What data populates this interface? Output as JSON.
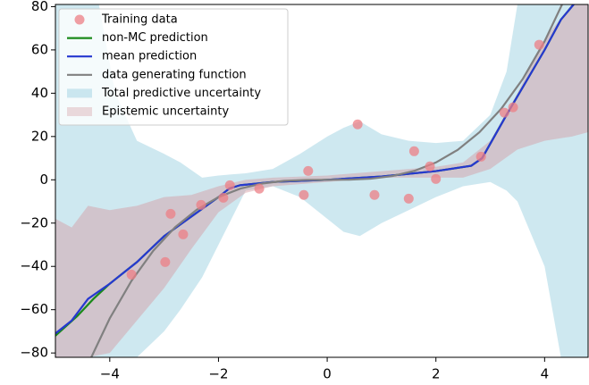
{
  "chart_data": {
    "type": "line",
    "xlim": [
      -5,
      4.8
    ],
    "ylim": [
      -82,
      81
    ],
    "xticks": [
      {
        "value": -4,
        "label": "−4"
      },
      {
        "value": -2,
        "label": "−2"
      },
      0,
      2,
      4
    ],
    "yticks": [
      {
        "value": -80,
        "label": "−80"
      },
      {
        "value": -60,
        "label": "−60"
      },
      {
        "value": -40,
        "label": "−40"
      },
      {
        "value": -20,
        "label": "−20"
      },
      0,
      20,
      40,
      60,
      80
    ],
    "legend": "upper left",
    "series": [
      {
        "name": "Training data",
        "kind": "scatter",
        "color": "#ec7f86",
        "x": [
          -3.6,
          -2.88,
          -2.98,
          -2.65,
          -2.32,
          -1.91,
          -1.79,
          -1.25,
          -0.43,
          -0.35,
          0.56,
          0.87,
          1.5,
          1.6,
          1.89,
          2.0,
          2.83,
          3.26,
          3.42,
          3.9
        ],
        "values": [
          -43.8,
          -15.7,
          -38,
          -25.2,
          -11.6,
          -8.3,
          -2.5,
          -4.1,
          -7,
          4.1,
          25.6,
          -7,
          -8.7,
          13.2,
          6.2,
          0.4,
          10.7,
          31,
          33.5,
          62.4
        ]
      },
      {
        "name": "non-MC prediction",
        "kind": "line",
        "color": "#1a8a1a",
        "x": [
          -5,
          -4.6,
          -4.3,
          -4,
          -3.5,
          -3,
          -2.5,
          -2,
          -1.8,
          -1.6,
          -1,
          0,
          1,
          2,
          2.65,
          2.85,
          3.3,
          4,
          4.3,
          4.6
        ],
        "values": [
          -72,
          -63,
          -55,
          -48,
          -38,
          -26,
          -17,
          -8,
          -4,
          -2.5,
          -1,
          0,
          1.5,
          4,
          6.5,
          10,
          30,
          60,
          74,
          83
        ]
      },
      {
        "name": "mean prediction",
        "kind": "line",
        "color": "#2638d0",
        "x": [
          -5,
          -4.7,
          -4.4,
          -4,
          -3.5,
          -3,
          -2.5,
          -2,
          -1.8,
          -1.6,
          -1,
          0,
          1,
          2,
          2.65,
          2.85,
          3.3,
          4,
          4.3,
          4.6
        ],
        "values": [
          -71,
          -65,
          -55,
          -48,
          -38,
          -26,
          -17,
          -8,
          -4,
          -2.5,
          -1,
          0,
          1.5,
          4,
          6.5,
          10,
          30,
          60,
          74,
          83
        ]
      },
      {
        "name": "data generating function",
        "kind": "line",
        "color": "#808080",
        "x": [
          -4.4,
          -4,
          -3.6,
          -3.2,
          -2.8,
          -2.4,
          -2,
          -1.6,
          -1.2,
          -0.8,
          -0.4,
          0,
          0.4,
          0.8,
          1.2,
          1.6,
          2,
          2.4,
          2.8,
          3.2,
          3.6,
          4,
          4.4
        ],
        "values": [
          -85.18,
          -64,
          -46.66,
          -32.77,
          -21.95,
          -13.82,
          -8,
          -4.1,
          -1.73,
          -0.51,
          -0.06,
          0,
          0.06,
          0.51,
          1.73,
          4.1,
          8,
          13.82,
          21.95,
          32.77,
          46.66,
          64,
          85.18
        ]
      },
      {
        "name": "Total predictive uncertainty",
        "kind": "band",
        "color": "#add8e6",
        "x": [
          -5,
          -4.2,
          -3.9,
          -3.5,
          -3,
          -2.7,
          -2.3,
          -2,
          -1.5,
          -1,
          -0.5,
          0,
          0.3,
          0.6,
          1,
          1.5,
          2,
          2.5,
          3,
          3.3,
          3.5,
          4,
          4.3,
          4.8
        ],
        "upper": [
          81,
          81,
          40,
          18,
          12,
          8,
          1,
          2,
          3,
          5,
          12,
          20,
          24,
          27,
          21,
          18,
          17,
          18,
          30,
          50,
          81,
          81,
          81,
          81
        ],
        "lower": [
          -82,
          -82,
          -82,
          -82,
          -70,
          -60,
          -45,
          -30,
          -5,
          -3,
          -8,
          -18,
          -24,
          -26,
          -20,
          -14,
          -8,
          -3,
          -1,
          -5,
          -10,
          -40,
          -82,
          -82
        ]
      },
      {
        "name": "Epistemic uncertainty",
        "kind": "band",
        "color": "#d4999f",
        "x": [
          -5,
          -4.7,
          -4.4,
          -4,
          -3.5,
          -3,
          -2.5,
          -2,
          -1.5,
          -1,
          0,
          1,
          2,
          2.5,
          3,
          3.5,
          4,
          4.5,
          4.8
        ],
        "upper": [
          -18,
          -22,
          -12,
          -14,
          -12,
          -8,
          -7,
          -3,
          0,
          1,
          2,
          4,
          6,
          8,
          18,
          40,
          65,
          81,
          81
        ],
        "lower": [
          -82,
          -82,
          -82,
          -80,
          -65,
          -50,
          -32,
          -15,
          -6,
          -3,
          -1,
          1,
          1,
          1,
          5,
          14,
          18,
          20,
          22
        ]
      }
    ]
  }
}
